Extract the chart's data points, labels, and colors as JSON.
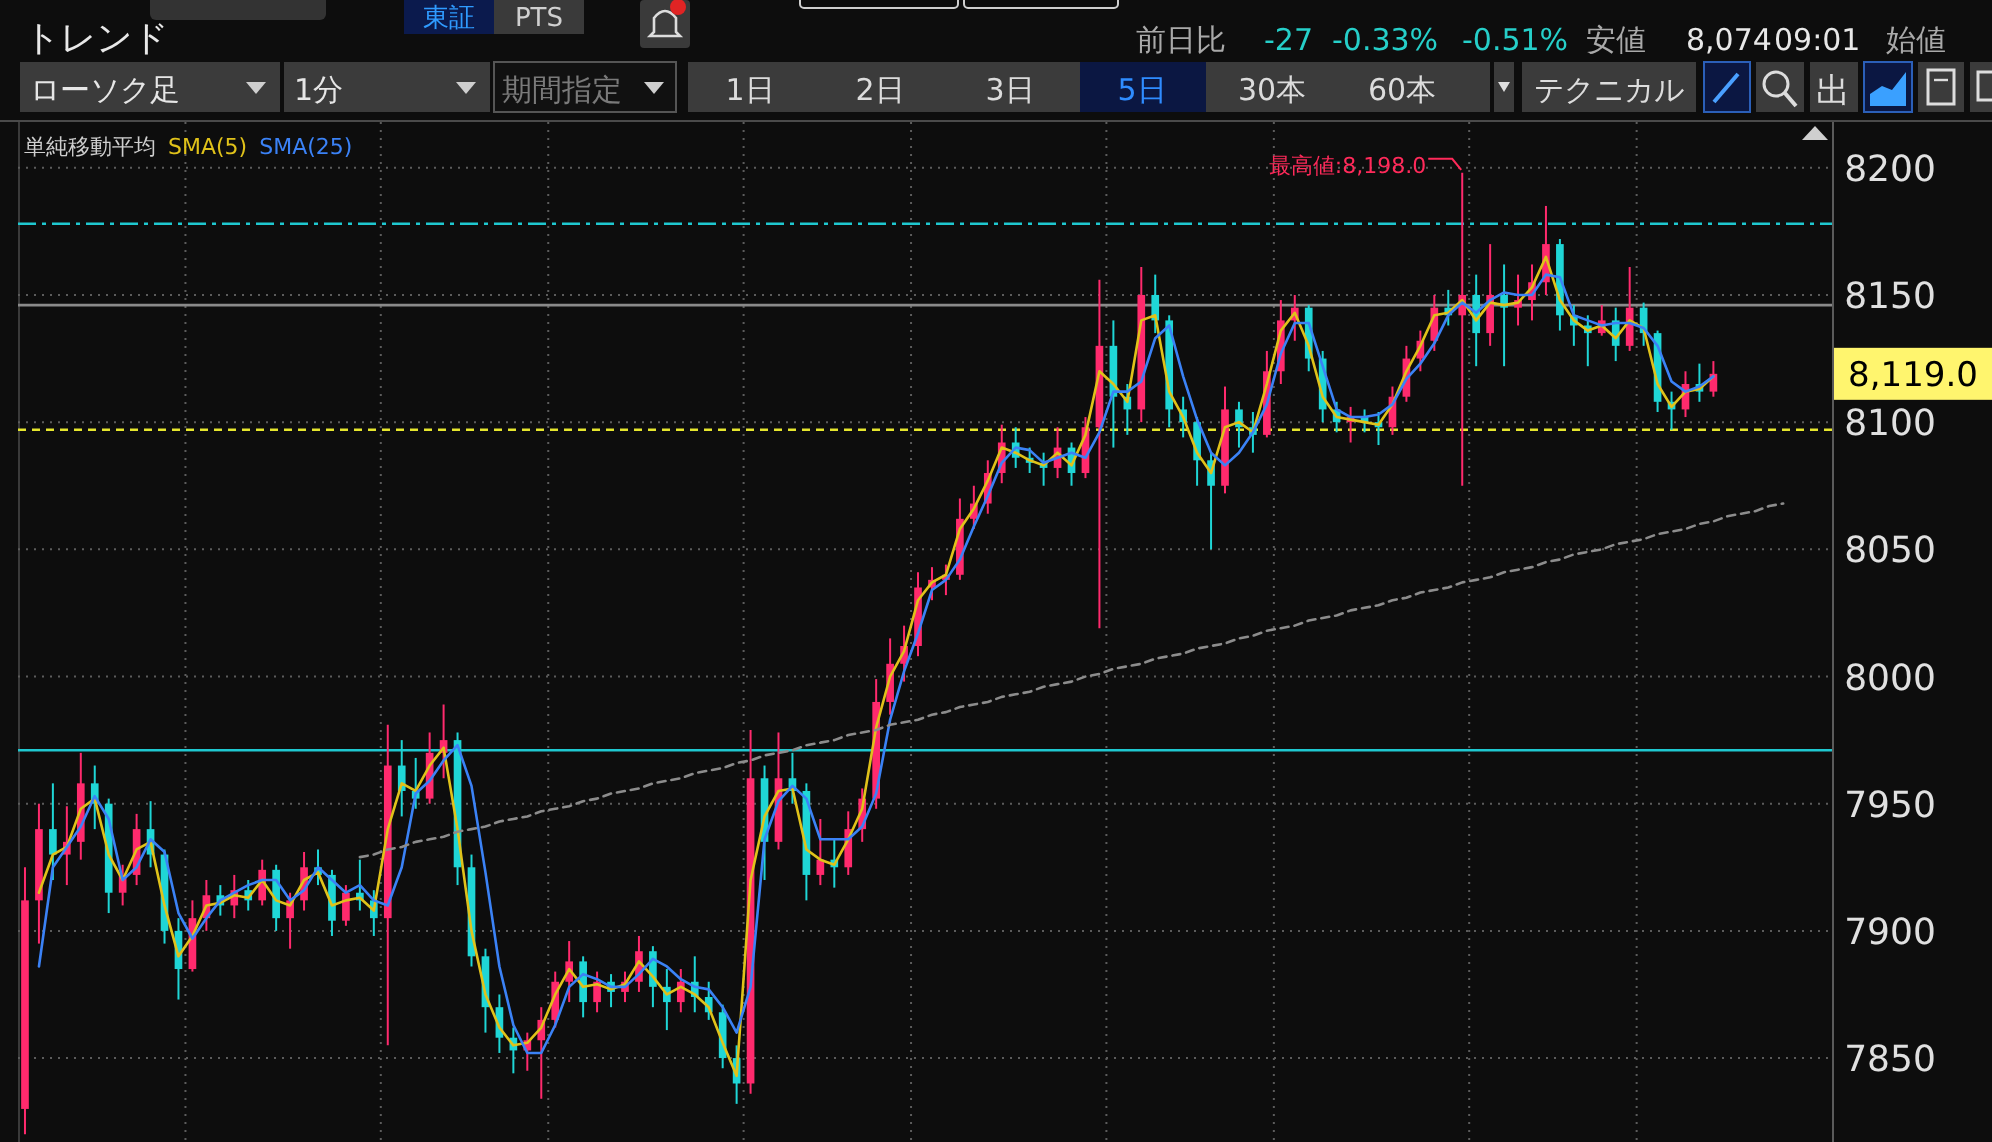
{
  "chart_data": {
    "type": "candlestick",
    "title": "トレンド",
    "categories": [
      null,
      null,
      null,
      null,
      null,
      null,
      null,
      null,
      null,
      null,
      null,
      null,
      null,
      null,
      null,
      null,
      null,
      null,
      null,
      null,
      null,
      null,
      null,
      null,
      null,
      null,
      null,
      null,
      null,
      null,
      null,
      null,
      null,
      null,
      null,
      null,
      null,
      null,
      null,
      null,
      null,
      null,
      null,
      null,
      null,
      null,
      null,
      null,
      null,
      null,
      null,
      null,
      null,
      null,
      null,
      null,
      null,
      null,
      null,
      null,
      null,
      null,
      null,
      null,
      null,
      null,
      null,
      null,
      null,
      null,
      null,
      null,
      null,
      null,
      null,
      null,
      null,
      null,
      null,
      null,
      null,
      null,
      null,
      null,
      null,
      null,
      null,
      null,
      null,
      null,
      null,
      null,
      null,
      null,
      null,
      null,
      null,
      null,
      null,
      null,
      null,
      null,
      null,
      null,
      null,
      null,
      null,
      null,
      null,
      null,
      null,
      null,
      null,
      null,
      null,
      null,
      null,
      null,
      null,
      null,
      null,
      null,
      null,
      null,
      null,
      null,
      null,
      null,
      null,
      null
    ],
    "ohlc": [
      [
        7830,
        7925,
        7820,
        7912
      ],
      [
        7912,
        7950,
        7895,
        7940
      ],
      [
        7940,
        7958,
        7920,
        7930
      ],
      [
        7930,
        7949,
        7918,
        7935
      ],
      [
        7935,
        7970,
        7928,
        7958
      ],
      [
        7958,
        7965,
        7940,
        7950
      ],
      [
        7950,
        7952,
        7907,
        7915
      ],
      [
        7915,
        7926,
        7910,
        7922
      ],
      [
        7922,
        7946,
        7918,
        7940
      ],
      [
        7940,
        7951,
        7925,
        7930
      ],
      [
        7930,
        7932,
        7895,
        7900
      ],
      [
        7900,
        7905,
        7873,
        7885
      ],
      [
        7885,
        7912,
        7884,
        7905
      ],
      [
        7905,
        7920,
        7900,
        7914
      ],
      [
        7914,
        7918,
        7906,
        7910
      ],
      [
        7910,
        7922,
        7905,
        7916
      ],
      [
        7916,
        7920,
        7908,
        7912
      ],
      [
        7912,
        7928,
        7910,
        7924
      ],
      [
        7924,
        7926,
        7900,
        7905
      ],
      [
        7905,
        7915,
        7893,
        7912
      ],
      [
        7912,
        7931,
        7908,
        7925
      ],
      [
        7925,
        7932,
        7918,
        7922
      ],
      [
        7922,
        7924,
        7898,
        7904
      ],
      [
        7904,
        7918,
        7902,
        7915
      ],
      [
        7915,
        7928,
        7908,
        7912
      ],
      [
        7912,
        7916,
        7898,
        7905
      ],
      [
        7905,
        7981,
        7855,
        7965
      ],
      [
        7965,
        7975,
        7945,
        7955
      ],
      [
        7955,
        7968,
        7948,
        7952
      ],
      [
        7952,
        7978,
        7950,
        7970
      ],
      [
        7970,
        7989,
        7960,
        7975
      ],
      [
        7975,
        7978,
        7918,
        7925
      ],
      [
        7925,
        7930,
        7886,
        7890
      ],
      [
        7890,
        7893,
        7860,
        7870
      ],
      [
        7870,
        7875,
        7852,
        7858
      ],
      [
        7858,
        7862,
        7844,
        7853
      ],
      [
        7853,
        7860,
        7845,
        7857
      ],
      [
        7857,
        7870,
        7834,
        7865
      ],
      [
        7865,
        7884,
        7862,
        7880
      ],
      [
        7880,
        7896,
        7872,
        7888
      ],
      [
        7888,
        7890,
        7866,
        7872
      ],
      [
        7872,
        7884,
        7868,
        7880
      ],
      [
        7880,
        7883,
        7870,
        7876
      ],
      [
        7876,
        7884,
        7872,
        7880
      ],
      [
        7880,
        7898,
        7876,
        7892
      ],
      [
        7892,
        7894,
        7870,
        7878
      ],
      [
        7878,
        7885,
        7861,
        7872
      ],
      [
        7872,
        7885,
        7868,
        7880
      ],
      [
        7880,
        7890,
        7868,
        7874
      ],
      [
        7874,
        7880,
        7865,
        7868
      ],
      [
        7868,
        7871,
        7846,
        7850
      ],
      [
        7850,
        7855,
        7832,
        7840
      ],
      [
        7840,
        7979,
        7836,
        7960
      ],
      [
        7960,
        7965,
        7920,
        7935
      ],
      [
        7935,
        7978,
        7932,
        7960
      ],
      [
        7960,
        7970,
        7950,
        7955
      ],
      [
        7955,
        7958,
        7912,
        7922
      ],
      [
        7922,
        7944,
        7918,
        7928
      ],
      [
        7928,
        7936,
        7917,
        7925
      ],
      [
        7925,
        7947,
        7922,
        7940
      ],
      [
        7940,
        7956,
        7935,
        7952
      ],
      [
        7952,
        7999,
        7948,
        7990
      ],
      [
        7990,
        8015,
        7985,
        8005
      ],
      [
        8005,
        8020,
        7998,
        8012
      ],
      [
        8012,
        8041,
        8008,
        8035
      ],
      [
        8035,
        8043,
        8030,
        8038
      ],
      [
        8038,
        8044,
        8032,
        8040
      ],
      [
        8040,
        8070,
        8038,
        8062
      ],
      [
        8062,
        8075,
        8058,
        8068
      ],
      [
        8068,
        8085,
        8064,
        8080
      ],
      [
        8080,
        8099,
        8076,
        8092
      ],
      [
        8092,
        8098,
        8082,
        8086
      ],
      [
        8086,
        8090,
        8080,
        8084
      ],
      [
        8084,
        8088,
        8075,
        8082
      ],
      [
        8082,
        8098,
        8078,
        8090
      ],
      [
        8090,
        8092,
        8075,
        8080
      ],
      [
        8080,
        8102,
        8078,
        8098
      ],
      [
        8098,
        8156,
        8019,
        8130
      ],
      [
        8130,
        8140,
        8090,
        8110
      ],
      [
        8110,
        8115,
        8095,
        8105
      ],
      [
        8105,
        8161,
        8100,
        8150
      ],
      [
        8150,
        8158,
        8135,
        8140
      ],
      [
        8140,
        8142,
        8098,
        8105
      ],
      [
        8105,
        8110,
        8094,
        8100
      ],
      [
        8100,
        8102,
        8075,
        8085
      ],
      [
        8085,
        8088,
        8050,
        8075
      ],
      [
        8075,
        8114,
        8072,
        8105
      ],
      [
        8105,
        8108,
        8090,
        8098
      ],
      [
        8098,
        8104,
        8088,
        8095
      ],
      [
        8095,
        8128,
        8094,
        8120
      ],
      [
        8120,
        8148,
        8115,
        8140
      ],
      [
        8140,
        8150,
        8132,
        8145
      ],
      [
        8145,
        8146,
        8120,
        8125
      ],
      [
        8125,
        8128,
        8100,
        8105
      ],
      [
        8105,
        8108,
        8096,
        8100
      ],
      [
        8100,
        8106,
        8092,
        8102
      ],
      [
        8102,
        8105,
        8096,
        8100
      ],
      [
        8100,
        8104,
        8091,
        8098
      ],
      [
        8098,
        8114,
        8095,
        8110
      ],
      [
        8110,
        8130,
        8108,
        8125
      ],
      [
        8125,
        8136,
        8120,
        8132
      ],
      [
        8132,
        8150,
        8128,
        8145
      ],
      [
        8145,
        8152,
        8138,
        8142
      ],
      [
        8142,
        8198,
        8075,
        8150
      ],
      [
        8150,
        8158,
        8122,
        8135
      ],
      [
        8135,
        8170,
        8130,
        8150
      ],
      [
        8150,
        8162,
        8122,
        8145
      ],
      [
        8145,
        8158,
        8138,
        8148
      ],
      [
        8148,
        8162,
        8140,
        8155
      ],
      [
        8155,
        8185,
        8150,
        8170
      ],
      [
        8170,
        8172,
        8136,
        8142
      ],
      [
        8142,
        8146,
        8130,
        8138
      ],
      [
        8138,
        8142,
        8122,
        8135
      ],
      [
        8135,
        8146,
        8134,
        8140
      ],
      [
        8140,
        8145,
        8124,
        8130
      ],
      [
        8130,
        8161,
        8128,
        8145
      ],
      [
        8145,
        8147,
        8130,
        8135
      ],
      [
        8135,
        8136,
        8104,
        8108
      ],
      [
        8108,
        8112,
        8097,
        8105
      ],
      [
        8105,
        8120,
        8102,
        8115
      ],
      [
        8115,
        8123,
        8108,
        8112
      ],
      [
        8112,
        8124,
        8110,
        8119
      ],
      null,
      null,
      null,
      null,
      null,
      null,
      null,
      null
    ],
    "colors": [
      "#ff2a6d",
      "#ff2a6d",
      "#1fd6d6",
      "#ff2a6d",
      "#ff2a6d",
      "#1fd6d6",
      "#1fd6d6",
      "#ff2a6d",
      "#ff2a6d",
      "#1fd6d6",
      "#1fd6d6",
      "#1fd6d6",
      "#ff2a6d",
      "#ff2a6d",
      "#1fd6d6",
      "#ff2a6d",
      "#1fd6d6",
      "#ff2a6d",
      "#1fd6d6",
      "#ff2a6d",
      "#ff2a6d",
      "#1fd6d6",
      "#1fd6d6",
      "#ff2a6d",
      "#1fd6d6",
      "#1fd6d6",
      "#ff2a6d",
      "#1fd6d6",
      "#1fd6d6",
      "#ff2a6d",
      "#ff2a6d",
      "#1fd6d6",
      "#1fd6d6",
      "#1fd6d6",
      "#1fd6d6",
      "#1fd6d6",
      "#ff2a6d",
      "#ff2a6d",
      "#ff2a6d",
      "#ff2a6d",
      "#1fd6d6",
      "#ff2a6d",
      "#1fd6d6",
      "#ff2a6d",
      "#ff2a6d",
      "#1fd6d6",
      "#1fd6d6",
      "#ff2a6d",
      "#1fd6d6",
      "#1fd6d6",
      "#1fd6d6",
      "#1fd6d6",
      "#ff2a6d",
      "#1fd6d6",
      "#ff2a6d",
      "#1fd6d6",
      "#1fd6d6",
      "#ff2a6d",
      "#1fd6d6",
      "#ff2a6d",
      "#ff2a6d",
      "#ff2a6d",
      "#ff2a6d",
      "#ff2a6d",
      "#ff2a6d",
      "#ff2a6d",
      "#ff2a6d",
      "#ff2a6d",
      "#ff2a6d",
      "#ff2a6d",
      "#ff2a6d",
      "#1fd6d6",
      "#1fd6d6",
      "#1fd6d6",
      "#ff2a6d",
      "#1fd6d6",
      "#ff2a6d",
      "#ff2a6d",
      "#1fd6d6",
      "#1fd6d6",
      "#ff2a6d",
      "#1fd6d6",
      "#1fd6d6",
      "#1fd6d6",
      "#1fd6d6",
      "#1fd6d6",
      "#ff2a6d",
      "#1fd6d6",
      "#1fd6d6",
      "#ff2a6d",
      "#ff2a6d",
      "#ff2a6d",
      "#1fd6d6",
      "#1fd6d6",
      "#1fd6d6",
      "#ff2a6d",
      "#1fd6d6",
      "#1fd6d6",
      "#ff2a6d",
      "#ff2a6d",
      "#ff2a6d",
      "#ff2a6d",
      "#1fd6d6",
      "#ff2a6d",
      "#1fd6d6",
      "#ff2a6d",
      "#1fd6d6",
      "#ff2a6d",
      "#ff2a6d",
      "#ff2a6d",
      "#1fd6d6",
      "#1fd6d6",
      "#1fd6d6",
      "#ff2a6d",
      "#1fd6d6",
      "#ff2a6d",
      "#1fd6d6",
      "#1fd6d6",
      "#1fd6d6",
      "#ff2a6d",
      "#1fd6d6",
      "#ff2a6d",
      null,
      null,
      null,
      null,
      null,
      null,
      null,
      null
    ],
    "series": [
      {
        "name": "SMA(5)",
        "type": "line",
        "color": "#e0c21a",
        "values": [
          null,
          7915,
          7930,
          7933,
          7948,
          7952,
          7930,
          7920,
          7932,
          7935,
          7910,
          7890,
          7898,
          7910,
          7911,
          7914,
          7913,
          7920,
          7912,
          7910,
          7920,
          7923,
          7910,
          7912,
          7913,
          7908,
          7940,
          7958,
          7955,
          7965,
          7972,
          7940,
          7900,
          7875,
          7862,
          7855,
          7856,
          7862,
          7875,
          7885,
          7878,
          7879,
          7877,
          7879,
          7888,
          7882,
          7875,
          7878,
          7875,
          7870,
          7856,
          7843,
          7920,
          7945,
          7955,
          7956,
          7932,
          7928,
          7926,
          7936,
          7948,
          7980,
          8000,
          8010,
          8030,
          8037,
          8040,
          8058,
          8066,
          8077,
          8090,
          8088,
          8085,
          8083,
          8088,
          8083,
          8095,
          8120,
          8115,
          8108,
          8140,
          8142,
          8112,
          8102,
          8088,
          8080,
          8098,
          8100,
          8096,
          8115,
          8136,
          8143,
          8130,
          8110,
          8102,
          8101,
          8100,
          8099,
          8107,
          8120,
          8130,
          8142,
          8143,
          8148,
          8140,
          8147,
          8146,
          8147,
          8153,
          8165,
          8148,
          8140,
          8136,
          8138,
          8133,
          8140,
          8137,
          8115,
          8106,
          8112,
          8113,
          8118,
          null,
          null,
          null,
          null,
          null,
          null,
          null,
          null
        ]
      },
      {
        "name": "SMA(25)",
        "type": "line",
        "color": "#3b82f6",
        "values": [
          null,
          7886,
          7925,
          7933,
          7941,
          7953,
          7944,
          7920,
          7925,
          7936,
          7931,
          7907,
          7897,
          7905,
          7912,
          7915,
          7918,
          7920,
          7920,
          7912,
          7916,
          7925,
          7920,
          7915,
          7918,
          7912,
          7910,
          7925,
          7954,
          7959,
          7967,
          7973,
          7957,
          7923,
          7886,
          7863,
          7852,
          7852,
          7863,
          7878,
          7883,
          7881,
          7878,
          7878,
          7883,
          7889,
          7886,
          7881,
          7878,
          7877,
          7870,
          7860,
          7878,
          7936,
          7951,
          7957,
          7952,
          7936,
          7936,
          7936,
          7941,
          7954,
          7983,
          8002,
          8017,
          8034,
          8038,
          8046,
          8059,
          8071,
          8084,
          8090,
          8089,
          8084,
          8086,
          8088,
          8086,
          8096,
          8112,
          8112,
          8116,
          8133,
          8138,
          8118,
          8101,
          8088,
          8083,
          8088,
          8096,
          8107,
          8127,
          8139,
          8139,
          8122,
          8105,
          8102,
          8102,
          8103,
          8107,
          8117,
          8123,
          8131,
          8142,
          8147,
          8143,
          8148,
          8151,
          8150,
          8150,
          8158,
          8157,
          8142,
          8140,
          8138,
          8139,
          8139,
          8137,
          8130,
          8116,
          8112,
          8114,
          8118,
          null,
          null,
          null,
          null,
          null,
          null,
          null,
          null
        ]
      },
      {
        "type": "line",
        "color": "#8c8c8c",
        "line_style": "dashed",
        "values": [
          null,
          null,
          null,
          null,
          null,
          null,
          null,
          null,
          null,
          null,
          null,
          null,
          null,
          null,
          null,
          null,
          null,
          null,
          null,
          null,
          null,
          null,
          null,
          null,
          7929,
          7930,
          7932,
          7933,
          7935,
          7936,
          7937,
          7939,
          7940,
          7941,
          7943,
          7944,
          7945,
          7947,
          7948,
          7949,
          7951,
          7952,
          7954,
          7955,
          7956,
          7958,
          7959,
          7960,
          7962,
          7963,
          7964,
          7966,
          7967,
          7969,
          7970,
          7971,
          7973,
          7974,
          7975,
          7977,
          7978,
          7979,
          7981,
          7982,
          7983,
          7985,
          7986,
          7988,
          7989,
          7990,
          7992,
          7993,
          7994,
          7996,
          7997,
          7998,
          8000,
          8001,
          8003,
          8004,
          8005,
          8007,
          8008,
          8009,
          8011,
          8012,
          8013,
          8015,
          8016,
          8018,
          8019,
          8020,
          8022,
          8023,
          8024,
          8026,
          8027,
          8028,
          8030,
          8031,
          8033,
          8034,
          8035,
          8037,
          8038,
          8039,
          8041,
          8042,
          8043,
          8045,
          8046,
          8048,
          8049,
          8050,
          8052,
          8053,
          8054,
          8056,
          8057,
          8058,
          8060,
          8061,
          8063,
          8064,
          8065,
          8067,
          8068,
          null,
          null,
          null
        ]
      }
    ],
    "ylim": [
      7817,
      8218
    ],
    "yticks": [
      7850,
      7900,
      7950,
      8000,
      8050,
      8100,
      8150,
      8200
    ],
    "grid": true,
    "legend": "top left",
    "legend_title": "単純移動平均",
    "ref_lines": [
      {
        "axis": "y",
        "value": 8178,
        "color": "#1fc8d0",
        "line_style": "dashdot"
      },
      {
        "axis": "y",
        "value": 8146,
        "color": "#8a8a8a",
        "line_style": "solid"
      },
      {
        "axis": "y",
        "value": 8097,
        "color": "#e6e62e",
        "line_style": "dashed"
      },
      {
        "axis": "y",
        "value": 7971,
        "color": "#1fc8d0",
        "line_style": "solid"
      }
    ],
    "annotations": [
      "東証",
      "PTS",
      "前日比",
      "-27",
      "-0.33%",
      "-0.51%",
      "安値",
      "8,074",
      "09:01",
      "始値",
      "ローソク足",
      "1分",
      "期間指定",
      "1日",
      "2日",
      "3日",
      "5日",
      "30本",
      "60本",
      "テクニカル",
      "出",
      "最高値:8,198.0",
      "8,119.0"
    ]
  }
}
